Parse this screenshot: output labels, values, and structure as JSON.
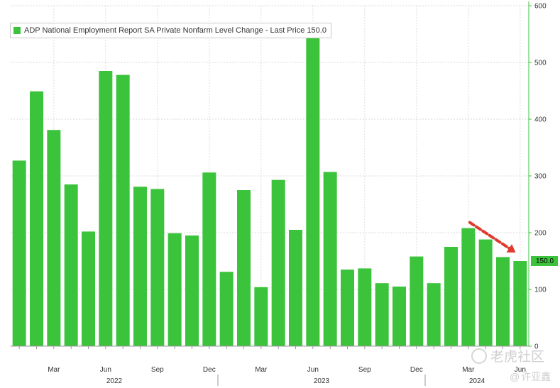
{
  "legend": {
    "label": "ADP National Employment Report SA Private Nonfarm Level Change - Last Price",
    "last_price": "150.0",
    "color": "#3cc33c"
  },
  "last_badge": "150.0",
  "watermark": {
    "brand": "老虎社区",
    "at": "@",
    "author": "许亚鑫"
  },
  "chart_data": {
    "type": "bar",
    "bar_color": "#3cc33c",
    "grid": true,
    "ylim": [
      0,
      600
    ],
    "yticks": [
      0,
      100,
      200,
      300,
      400,
      500,
      600
    ],
    "categories": [
      "Jan 2022",
      "Feb 2022",
      "Mar 2022",
      "Apr 2022",
      "May 2022",
      "Jun 2022",
      "Jul 2022",
      "Aug 2022",
      "Sep 2022",
      "Oct 2022",
      "Nov 2022",
      "Dec 2022",
      "Jan 2023",
      "Feb 2023",
      "Mar 2023",
      "Apr 2023",
      "May 2023",
      "Jun 2023",
      "Jul 2023",
      "Aug 2023",
      "Sep 2023",
      "Oct 2023",
      "Nov 2023",
      "Dec 2023",
      "Jan 2024",
      "Feb 2024",
      "Mar 2024",
      "Apr 2024",
      "May 2024",
      "Jun 2024"
    ],
    "values": [
      327,
      449,
      381,
      285,
      202,
      485,
      478,
      281,
      277,
      199,
      195,
      306,
      131,
      275,
      104,
      293,
      205,
      543,
      307,
      135,
      137,
      111,
      105,
      158,
      111,
      175,
      208,
      188,
      157,
      150
    ],
    "month_ticks": [
      {
        "index": 2,
        "label": "Mar"
      },
      {
        "index": 5,
        "label": "Jun"
      },
      {
        "index": 8,
        "label": "Sep"
      },
      {
        "index": 11,
        "label": "Dec"
      },
      {
        "index": 14,
        "label": "Mar"
      },
      {
        "index": 17,
        "label": "Jun"
      },
      {
        "index": 20,
        "label": "Sep"
      },
      {
        "index": 23,
        "label": "Dec"
      },
      {
        "index": 26,
        "label": "Mar"
      },
      {
        "index": 29,
        "label": "Jun"
      }
    ],
    "year_labels": [
      {
        "index": 5.5,
        "label": "2022"
      },
      {
        "index": 17.5,
        "label": "2023"
      },
      {
        "index": 26.5,
        "label": "2024"
      }
    ]
  }
}
